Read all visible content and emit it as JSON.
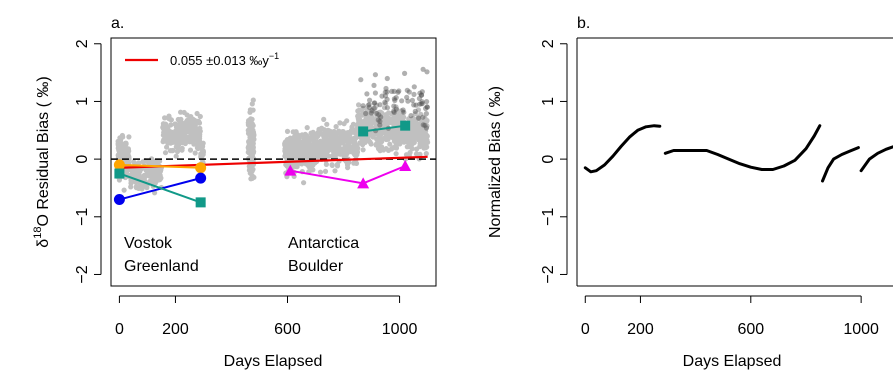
{
  "chart_data": [
    {
      "type": "scatter",
      "panel_label": "a.",
      "xlabel": "Days Elapsed",
      "ylabel_main": "δ",
      "ylabel_sup": "18",
      "ylabel_rest": "O Residual Bias ( ‰)",
      "xlim": [
        -30,
        1130
      ],
      "ylim": [
        -2.2,
        2.1
      ],
      "x_ticks": [
        0,
        200,
        600,
        1000
      ],
      "y_ticks": [
        -2,
        -1,
        0,
        1,
        2
      ],
      "zero_line": true,
      "trend_legend": {
        "label": "0.055 ±0.013 ‰y",
        "sup": "−1",
        "color": "#ee0000"
      },
      "trend_line": {
        "x": [
          0,
          1100
        ],
        "y": [
          -0.15,
          0.04
        ],
        "color": "#ee0000"
      },
      "series": [
        {
          "name": "Vostok",
          "color": "#ffa500",
          "marker": "circle",
          "x": [
            0,
            290
          ],
          "y": [
            -0.1,
            -0.15
          ]
        },
        {
          "name": "Greenland",
          "color": "#0000ee",
          "marker": "circle",
          "x": [
            0,
            290
          ],
          "y": [
            -0.7,
            -0.33
          ]
        },
        {
          "name": "Antarctica",
          "color": "#ee00ee",
          "marker": "triangle",
          "x": [
            610,
            870,
            1020
          ],
          "y": [
            -0.2,
            -0.42,
            -0.12
          ]
        },
        {
          "name": "Boulder",
          "color": "#119988",
          "marker": "square",
          "x": [
            0,
            290,
            870,
            1020
          ],
          "y": [
            -0.25,
            -0.75,
            0.48,
            0.58
          ],
          "segments": [
            [
              0,
              1
            ],
            [
              2,
              3
            ]
          ]
        }
      ],
      "scatter_color": "#c0c0c0",
      "scatter_dark_color": "#505050"
    },
    {
      "type": "line",
      "panel_label": "b.",
      "xlabel": "Days Elapsed",
      "ylabel": "Normalized Bias ( ‰)",
      "xlim": [
        -30,
        1130
      ],
      "ylim": [
        -2.2,
        2.1
      ],
      "x_ticks": [
        0,
        200,
        600,
        1000
      ],
      "y_ticks": [
        -2,
        -1,
        0,
        1,
        2
      ],
      "curves": [
        {
          "x": [
            0,
            20,
            40,
            70,
            100,
            130,
            160,
            190,
            220,
            250,
            270
          ],
          "y": [
            -0.15,
            -0.22,
            -0.2,
            -0.1,
            0.05,
            0.22,
            0.38,
            0.5,
            0.56,
            0.58,
            0.57
          ]
        },
        {
          "x": [
            290,
            320,
            360,
            400,
            440,
            480,
            520,
            560,
            600,
            640,
            680,
            720,
            760,
            800,
            830,
            850
          ],
          "y": [
            0.1,
            0.15,
            0.15,
            0.15,
            0.15,
            0.08,
            0.0,
            -0.08,
            -0.14,
            -0.18,
            -0.18,
            -0.12,
            -0.02,
            0.18,
            0.4,
            0.58
          ]
        },
        {
          "x": [
            860,
            880,
            900,
            930,
            960,
            990
          ],
          "y": [
            -0.38,
            -0.15,
            0.0,
            0.08,
            0.14,
            0.2
          ]
        },
        {
          "x": [
            1000,
            1030,
            1060,
            1090,
            1120,
            1150
          ],
          "y": [
            -0.2,
            0.0,
            0.1,
            0.17,
            0.22,
            0.26
          ]
        }
      ]
    }
  ]
}
